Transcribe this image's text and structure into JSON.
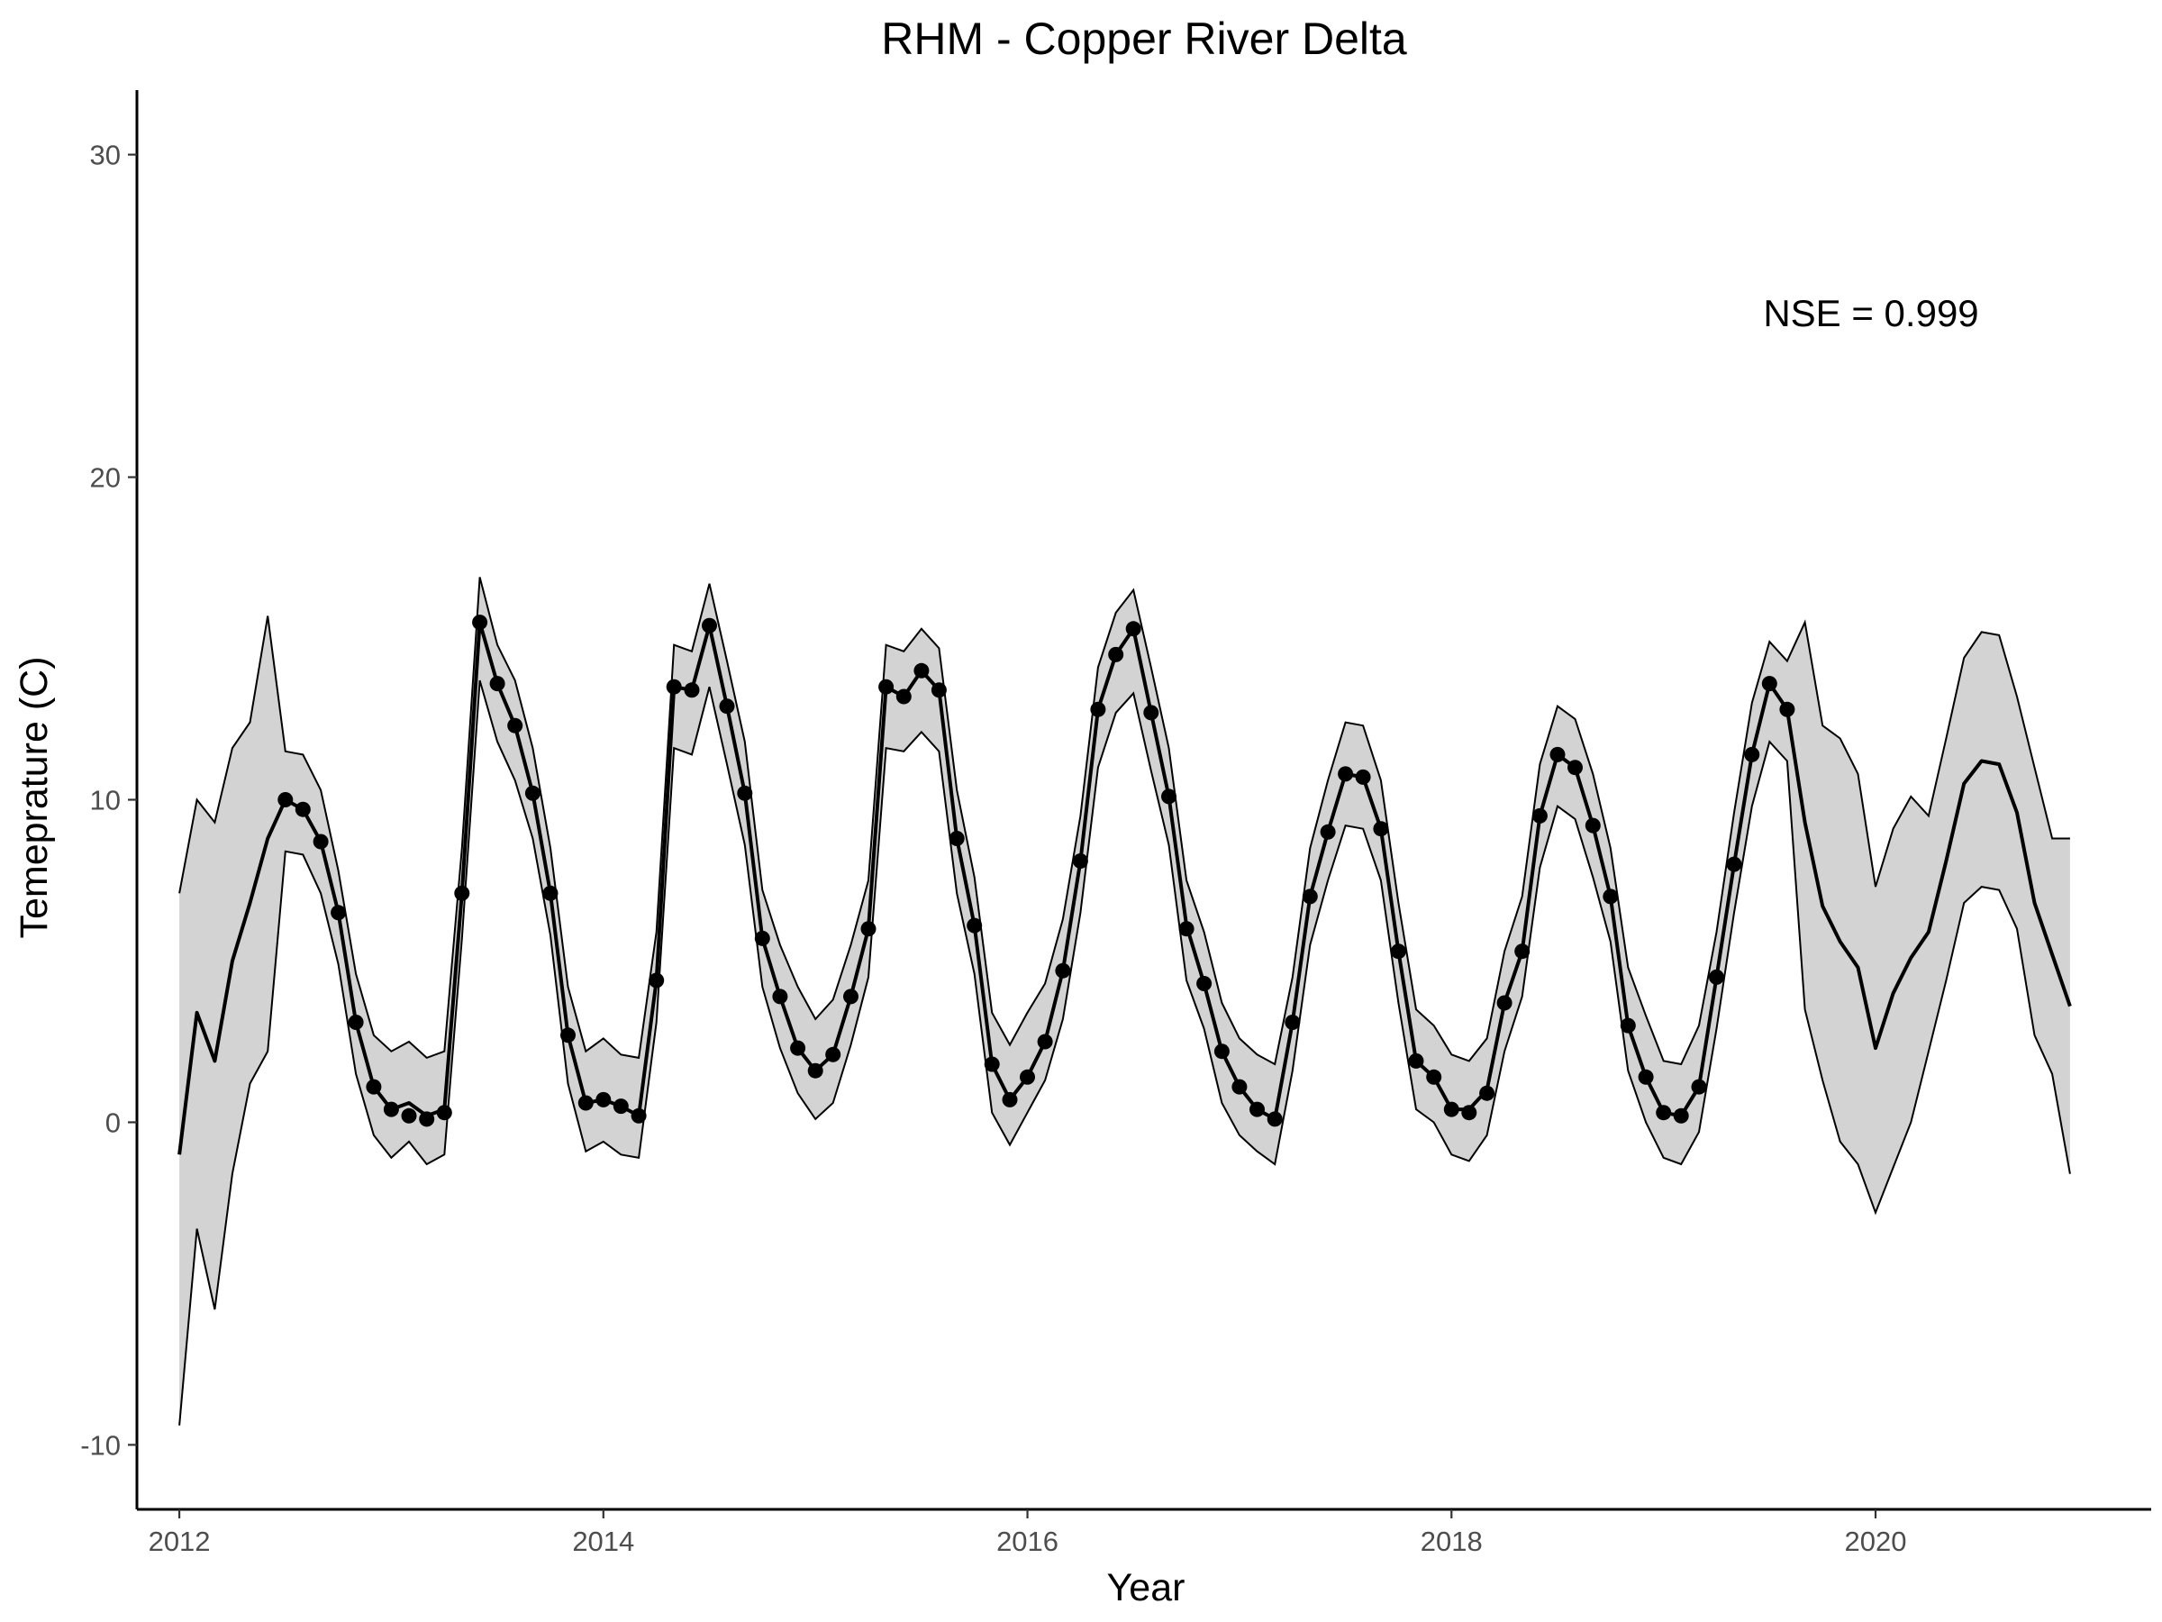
{
  "chart_data": {
    "type": "line",
    "title": "RHM - Copper River Delta",
    "xlabel": "Year",
    "ylabel": "Temeprature (C)",
    "xlim": [
      2011.8,
      2021.3
    ],
    "ylim": [
      -12,
      32
    ],
    "xticks": [
      2012,
      2014,
      2016,
      2018,
      2020
    ],
    "xtick_labels": [
      "2012",
      "2014",
      "2016",
      "2018",
      "2020"
    ],
    "yticks": [
      -10,
      0,
      10,
      20,
      30
    ],
    "ytick_labels": [
      "-10",
      "0",
      "10",
      "20",
      "30"
    ],
    "grid": false,
    "annotation": "NSE = 0.999",
    "x": [
      2012.0,
      2012.083,
      2012.167,
      2012.25,
      2012.333,
      2012.417,
      2012.5,
      2012.583,
      2012.667,
      2012.75,
      2012.833,
      2012.917,
      2013.0,
      2013.083,
      2013.167,
      2013.25,
      2013.333,
      2013.417,
      2013.5,
      2013.583,
      2013.667,
      2013.75,
      2013.833,
      2013.917,
      2014.0,
      2014.083,
      2014.167,
      2014.25,
      2014.333,
      2014.417,
      2014.5,
      2014.583,
      2014.667,
      2014.75,
      2014.833,
      2014.917,
      2015.0,
      2015.083,
      2015.167,
      2015.25,
      2015.333,
      2015.417,
      2015.5,
      2015.583,
      2015.667,
      2015.75,
      2015.833,
      2015.917,
      2016.0,
      2016.083,
      2016.167,
      2016.25,
      2016.333,
      2016.417,
      2016.5,
      2016.583,
      2016.667,
      2016.75,
      2016.833,
      2016.917,
      2017.0,
      2017.083,
      2017.167,
      2017.25,
      2017.333,
      2017.417,
      2017.5,
      2017.583,
      2017.667,
      2017.75,
      2017.833,
      2017.917,
      2018.0,
      2018.083,
      2018.167,
      2018.25,
      2018.333,
      2018.417,
      2018.5,
      2018.583,
      2018.667,
      2018.75,
      2018.833,
      2018.917,
      2019.0,
      2019.083,
      2019.167,
      2019.25,
      2019.333,
      2019.417,
      2019.5,
      2019.583,
      2019.667,
      2019.75,
      2019.833,
      2019.917,
      2020.0,
      2020.083,
      2020.167,
      2020.25,
      2020.333,
      2020.417,
      2020.5,
      2020.583,
      2020.667,
      2020.75,
      2020.833,
      2020.917
    ],
    "series": [
      {
        "role": "predicted",
        "values": [
          -1.0,
          3.4,
          1.9,
          5.0,
          6.8,
          8.8,
          10.0,
          9.7,
          8.7,
          6.5,
          3.1,
          1.1,
          0.4,
          0.6,
          0.2,
          0.4,
          7.1,
          15.5,
          13.6,
          12.3,
          10.2,
          7.1,
          2.7,
          0.6,
          0.7,
          0.5,
          0.2,
          4.4,
          13.5,
          13.4,
          15.4,
          12.9,
          10.2,
          5.7,
          3.9,
          2.3,
          1.6,
          2.1,
          3.9,
          6.0,
          13.5,
          13.2,
          14.0,
          13.4,
          8.8,
          6.1,
          1.8,
          0.7,
          1.4,
          2.5,
          4.7,
          8.1,
          12.8,
          14.5,
          15.3,
          12.7,
          10.1,
          6.1,
          4.3,
          2.2,
          1.1,
          0.4,
          0.1,
          3.1,
          7.0,
          9.0,
          10.8,
          10.7,
          9.1,
          5.3,
          1.9,
          1.4,
          0.4,
          0.4,
          1.0,
          3.7,
          5.3,
          9.5,
          11.4,
          11.0,
          9.2,
          7.0,
          3.0,
          1.4,
          0.3,
          0.2,
          1.1,
          4.5,
          8.0,
          11.4,
          13.6,
          12.8,
          9.3,
          6.7,
          5.6,
          4.8,
          2.3,
          4.0,
          5.1,
          5.9,
          8.1,
          10.5,
          11.2,
          11.1,
          9.6,
          6.8,
          5.2,
          3.6
        ]
      },
      {
        "role": "upper",
        "values": [
          7.1,
          10.0,
          9.3,
          11.6,
          12.4,
          15.7,
          11.5,
          11.4,
          10.3,
          7.8,
          4.6,
          2.7,
          2.2,
          2.5,
          2.0,
          2.2,
          8.5,
          16.9,
          14.8,
          13.7,
          11.6,
          8.5,
          4.2,
          2.2,
          2.6,
          2.1,
          2.0,
          5.9,
          14.8,
          14.6,
          16.7,
          14.3,
          11.8,
          7.2,
          5.5,
          4.2,
          3.2,
          3.8,
          5.5,
          7.5,
          14.8,
          14.6,
          15.3,
          14.7,
          10.3,
          7.6,
          3.4,
          2.4,
          3.4,
          4.3,
          6.3,
          9.5,
          14.1,
          15.8,
          16.5,
          14.1,
          11.6,
          7.5,
          5.9,
          3.7,
          2.6,
          2.1,
          1.8,
          4.5,
          8.5,
          10.6,
          12.4,
          12.3,
          10.6,
          6.8,
          3.5,
          3.0,
          2.1,
          1.9,
          2.6,
          5.3,
          7.0,
          11.1,
          12.9,
          12.5,
          10.8,
          8.5,
          4.8,
          3.3,
          1.9,
          1.8,
          3.0,
          5.9,
          9.6,
          13.0,
          14.9,
          14.3,
          15.5,
          12.3,
          11.9,
          10.8,
          7.3,
          9.1,
          10.1,
          9.5,
          11.9,
          14.4,
          15.2,
          15.1,
          13.2,
          11.0,
          8.8,
          8.8
        ]
      },
      {
        "role": "lower",
        "values": [
          -9.4,
          -3.3,
          -5.8,
          -1.6,
          1.2,
          2.2,
          8.4,
          8.3,
          7.1,
          4.9,
          1.5,
          -0.4,
          -1.1,
          -0.6,
          -1.3,
          -1.0,
          5.7,
          13.7,
          11.8,
          10.6,
          8.8,
          5.8,
          1.2,
          -0.9,
          -0.6,
          -1.0,
          -1.1,
          3.1,
          11.6,
          11.4,
          13.5,
          11.1,
          8.6,
          4.2,
          2.3,
          0.9,
          0.1,
          0.6,
          2.4,
          4.5,
          11.6,
          11.5,
          12.1,
          11.5,
          7.1,
          4.6,
          0.3,
          -0.7,
          0.3,
          1.3,
          3.2,
          6.5,
          11.0,
          12.7,
          13.3,
          10.9,
          8.6,
          4.4,
          2.9,
          0.6,
          -0.4,
          -0.9,
          -1.3,
          1.6,
          5.5,
          7.5,
          9.2,
          9.1,
          7.5,
          3.7,
          0.4,
          0.0,
          -1.0,
          -1.2,
          -0.4,
          2.2,
          3.9,
          7.9,
          9.8,
          9.4,
          7.6,
          5.6,
          1.6,
          0.0,
          -1.1,
          -1.3,
          -0.3,
          2.9,
          6.5,
          9.8,
          11.8,
          11.2,
          3.5,
          1.3,
          -0.6,
          -1.3,
          -2.8,
          -1.4,
          0.0,
          2.2,
          4.4,
          6.8,
          7.3,
          7.2,
          6.0,
          2.7,
          1.5,
          -1.6
        ]
      },
      {
        "role": "observed",
        "x": [
          2012.5,
          2012.583,
          2012.667,
          2012.75,
          2012.833,
          2012.917,
          2013.0,
          2013.083,
          2013.167,
          2013.25,
          2013.333,
          2013.417,
          2013.5,
          2013.583,
          2013.667,
          2013.75,
          2013.833,
          2013.917,
          2014.0,
          2014.083,
          2014.167,
          2014.25,
          2014.333,
          2014.417,
          2014.5,
          2014.583,
          2014.667,
          2014.75,
          2014.833,
          2014.917,
          2015.0,
          2015.083,
          2015.167,
          2015.25,
          2015.333,
          2015.417,
          2015.5,
          2015.583,
          2015.667,
          2015.75,
          2015.833,
          2015.917,
          2016.0,
          2016.083,
          2016.167,
          2016.25,
          2016.333,
          2016.417,
          2016.5,
          2016.583,
          2016.667,
          2016.75,
          2016.833,
          2016.917,
          2017.0,
          2017.083,
          2017.167,
          2017.25,
          2017.333,
          2017.417,
          2017.5,
          2017.583,
          2017.667,
          2017.75,
          2017.833,
          2017.917,
          2018.0,
          2018.083,
          2018.167,
          2018.25,
          2018.333,
          2018.417,
          2018.5,
          2018.583,
          2018.667,
          2018.75,
          2018.833,
          2018.917,
          2019.0,
          2019.083,
          2019.167,
          2019.25,
          2019.333,
          2019.417,
          2019.5,
          2019.583
        ],
        "values": [
          10.0,
          9.7,
          8.7,
          6.5,
          3.1,
          1.1,
          0.4,
          0.2,
          0.1,
          0.3,
          7.1,
          15.5,
          13.6,
          12.3,
          10.2,
          7.1,
          2.7,
          0.6,
          0.7,
          0.5,
          0.2,
          4.4,
          13.5,
          13.4,
          15.4,
          12.9,
          10.2,
          5.7,
          3.9,
          2.3,
          1.6,
          2.1,
          3.9,
          6.0,
          13.5,
          13.2,
          14.0,
          13.4,
          8.8,
          6.1,
          1.8,
          0.7,
          1.4,
          2.5,
          4.7,
          8.1,
          12.8,
          14.5,
          15.3,
          12.7,
          10.1,
          6.0,
          4.3,
          2.2,
          1.1,
          0.4,
          0.1,
          3.1,
          7.0,
          9.0,
          10.8,
          10.7,
          9.1,
          5.3,
          1.9,
          1.4,
          0.4,
          0.3,
          0.9,
          3.7,
          5.3,
          9.5,
          11.4,
          11.0,
          9.2,
          7.0,
          3.0,
          1.4,
          0.3,
          0.2,
          1.1,
          4.5,
          8.0,
          11.4,
          13.6,
          12.8
        ]
      }
    ]
  }
}
